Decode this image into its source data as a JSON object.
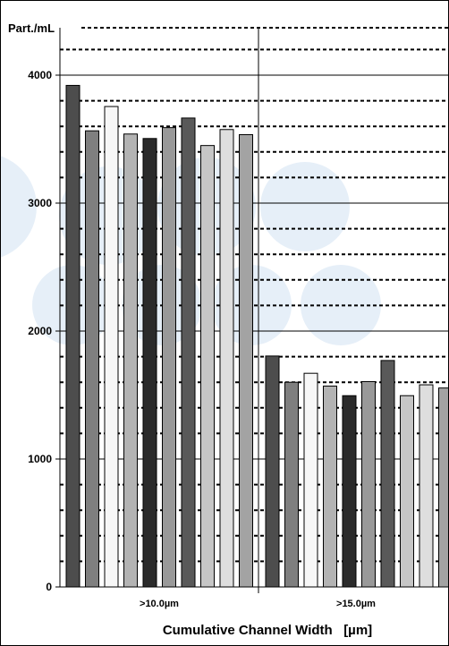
{
  "chart_data": {
    "type": "bar",
    "ylabel": "Part./mL",
    "xlabel": "Cumulative Channel Width   [µm]",
    "ylim": [
      0,
      4200
    ],
    "yticks": [
      0,
      1000,
      2000,
      3000,
      4000
    ],
    "grid": true,
    "categories": [
      ">10.0µm",
      ">15.0µm"
    ],
    "series": [
      {
        "values": [
          3920,
          1805
        ],
        "color": "#4d4d4d"
      },
      {
        "values": [
          3565,
          1600
        ],
        "color": "#7f7f7f"
      },
      {
        "values": [
          3755,
          1670
        ],
        "color": "#f7f7f7"
      },
      {
        "values": [
          3540,
          1570
        ],
        "color": "#b3b3b3"
      },
      {
        "values": [
          3505,
          1495
        ],
        "color": "#2b2b2b"
      },
      {
        "values": [
          3590,
          1605
        ],
        "color": "#999999"
      },
      {
        "values": [
          3665,
          1770
        ],
        "color": "#595959"
      },
      {
        "values": [
          3450,
          1495
        ],
        "color": "#c6c6c6"
      },
      {
        "values": [
          3575,
          1580
        ],
        "color": "#dedede"
      },
      {
        "values": [
          3535,
          1555
        ],
        "color": "#a3a3a3"
      }
    ]
  }
}
